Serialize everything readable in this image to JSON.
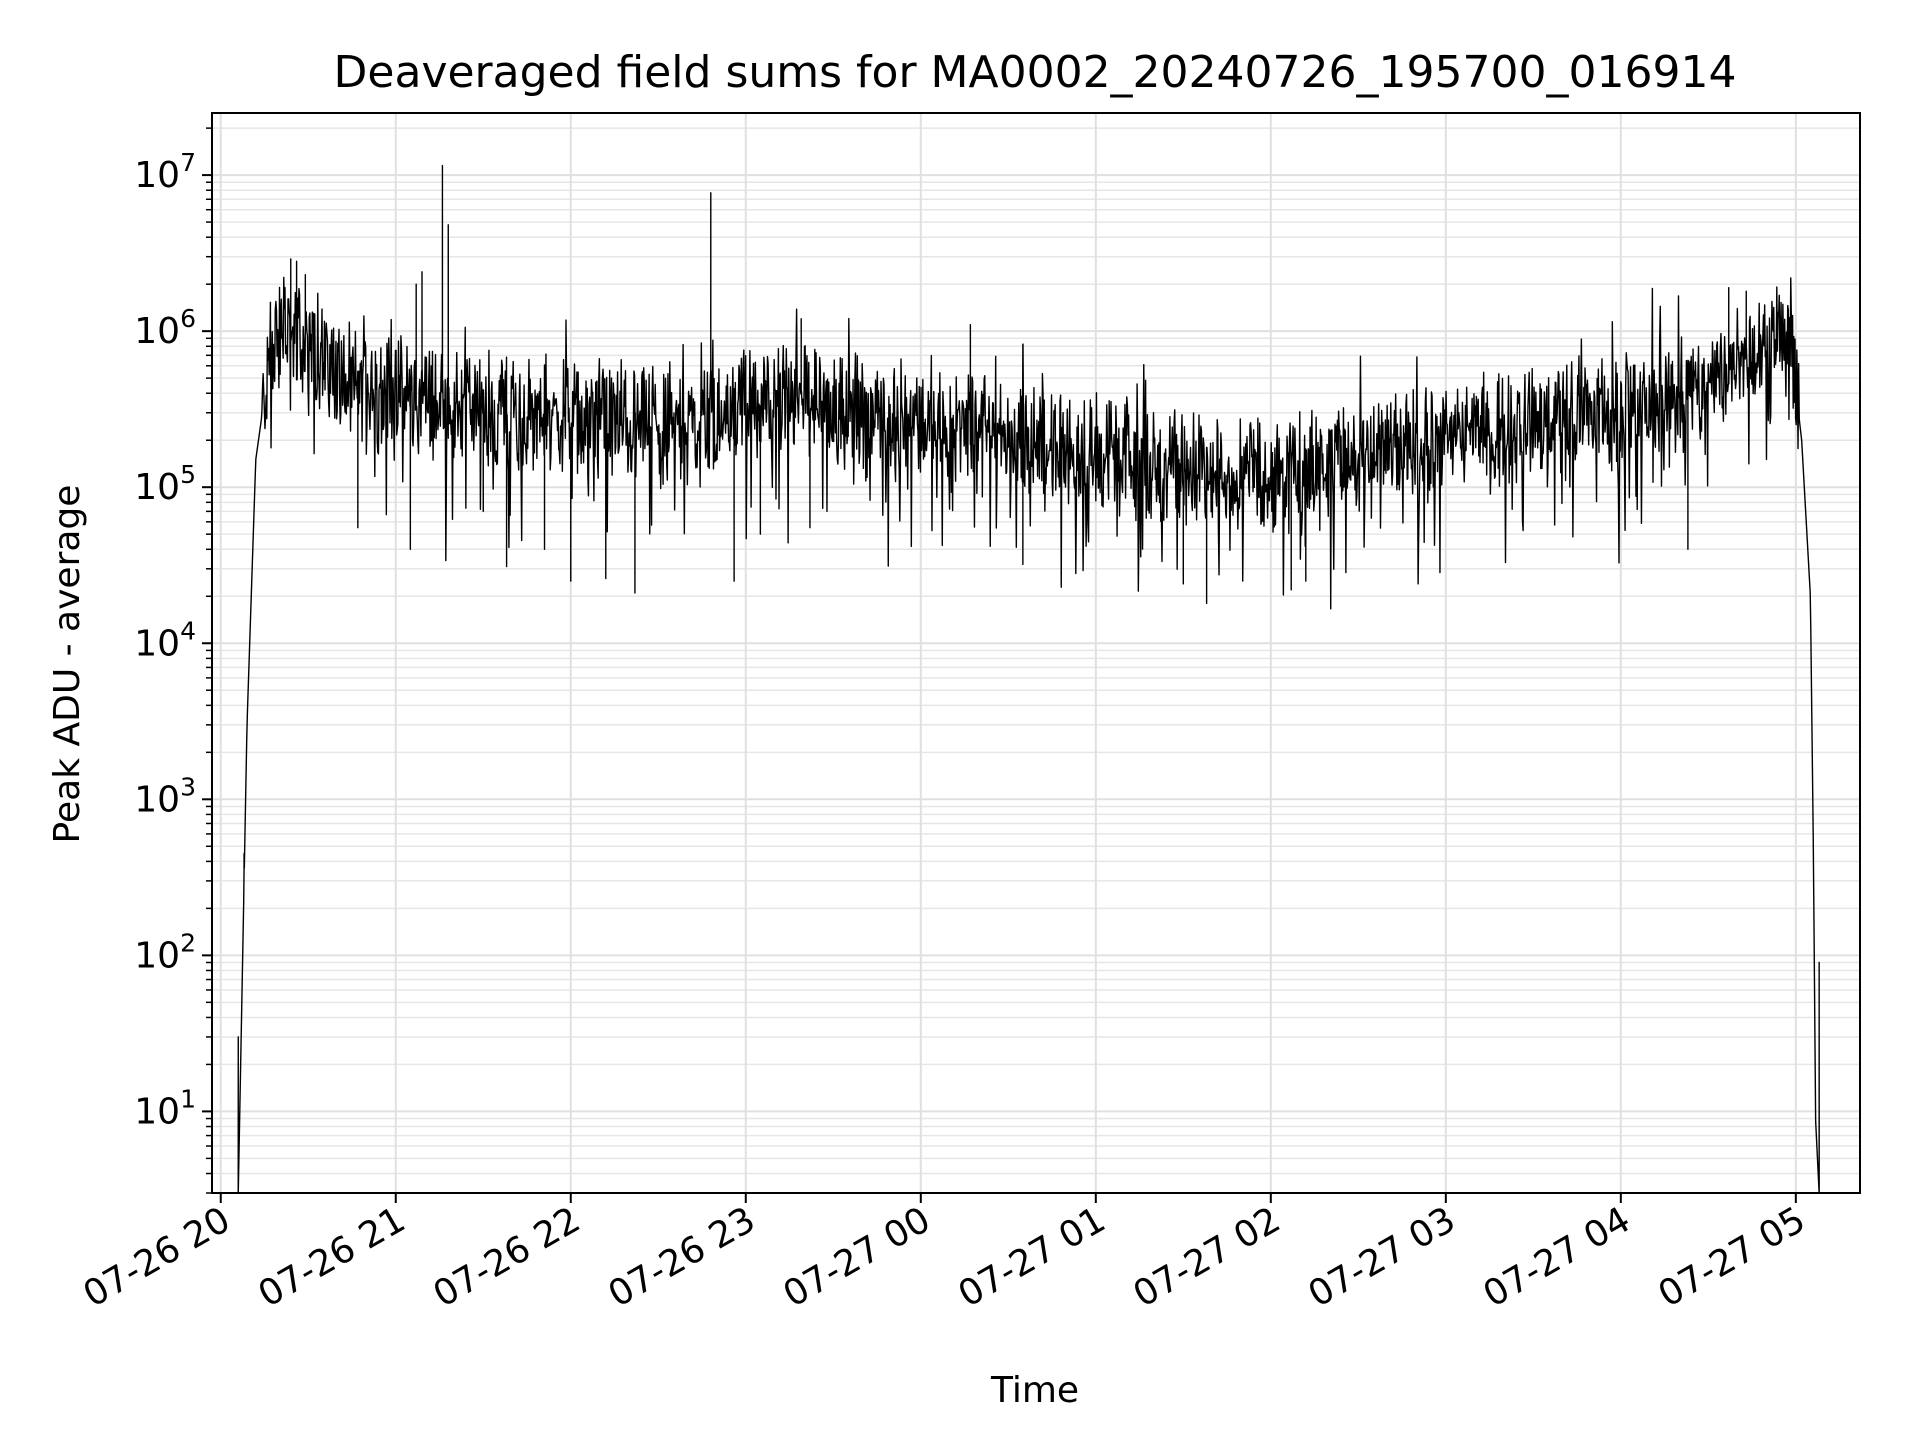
{
  "chart_data": {
    "type": "line",
    "title": "Deaveraged field sums for MA0002_20240726_195700_016914",
    "xlabel": "Time",
    "ylabel": "Peak ADU - average",
    "yscale": "log",
    "ylim": [
      3,
      25000000
    ],
    "xlim": [
      "2024-07-26 19:57",
      "2024-07-27 05:22"
    ],
    "grid": "on",
    "x_ticks": [
      {
        "value": "2024-07-26 20:00",
        "label": "07-26 20"
      },
      {
        "value": "2024-07-26 21:00",
        "label": "07-26 21"
      },
      {
        "value": "2024-07-26 22:00",
        "label": "07-26 22"
      },
      {
        "value": "2024-07-26 23:00",
        "label": "07-26 23"
      },
      {
        "value": "2024-07-27 00:00",
        "label": "07-27 00"
      },
      {
        "value": "2024-07-27 01:00",
        "label": "07-27 01"
      },
      {
        "value": "2024-07-27 02:00",
        "label": "07-27 02"
      },
      {
        "value": "2024-07-27 03:00",
        "label": "07-27 03"
      },
      {
        "value": "2024-07-27 04:00",
        "label": "07-27 04"
      },
      {
        "value": "2024-07-27 05:00",
        "label": "07-27 05"
      }
    ],
    "y_ticks": [
      {
        "value": 10,
        "base": "10",
        "exp": "1"
      },
      {
        "value": 100,
        "base": "10",
        "exp": "2"
      },
      {
        "value": 1000,
        "base": "10",
        "exp": "3"
      },
      {
        "value": 10000,
        "base": "10",
        "exp": "4"
      },
      {
        "value": 100000,
        "base": "10",
        "exp": "5"
      },
      {
        "value": 1000000,
        "base": "10",
        "exp": "6"
      },
      {
        "value": 10000000,
        "base": "10",
        "exp": "7"
      }
    ],
    "series": [
      {
        "color": "#000000",
        "envelope": [
          [
            "2024-07-26 20:06",
            3
          ],
          [
            "2024-07-26 20:09",
            3000
          ],
          [
            "2024-07-26 20:12",
            150000
          ],
          [
            "2024-07-26 20:17",
            700000
          ],
          [
            "2024-07-26 20:22",
            1100000
          ],
          [
            "2024-07-26 20:30",
            800000
          ],
          [
            "2024-07-26 20:45",
            450000
          ],
          [
            "2024-07-26 21:00",
            380000
          ],
          [
            "2024-07-26 21:30",
            320000
          ],
          [
            "2024-07-26 22:00",
            280000
          ],
          [
            "2024-07-26 22:30",
            260000
          ],
          [
            "2024-07-26 23:00",
            330000
          ],
          [
            "2024-07-26 23:20",
            380000
          ],
          [
            "2024-07-26 23:40",
            300000
          ],
          [
            "2024-07-27 00:00",
            250000
          ],
          [
            "2024-07-27 00:30",
            220000
          ],
          [
            "2024-07-27 01:00",
            160000
          ],
          [
            "2024-07-27 01:30",
            130000
          ],
          [
            "2024-07-27 02:00",
            120000
          ],
          [
            "2024-07-27 02:30",
            150000
          ],
          [
            "2024-07-27 03:00",
            200000
          ],
          [
            "2024-07-27 03:30",
            260000
          ],
          [
            "2024-07-27 04:00",
            300000
          ],
          [
            "2024-07-27 04:20",
            380000
          ],
          [
            "2024-07-27 04:40",
            600000
          ],
          [
            "2024-07-27 04:53",
            1050000
          ],
          [
            "2024-07-27 04:58",
            900000
          ],
          [
            "2024-07-27 05:02",
            200000
          ],
          [
            "2024-07-27 05:05",
            20000
          ],
          [
            "2024-07-27 05:06",
            500
          ],
          [
            "2024-07-27 05:07",
            3
          ]
        ],
        "spikes": [
          [
            "2024-07-26 20:06",
            30
          ],
          [
            "2024-07-26 20:08",
            450
          ],
          [
            "2024-07-26 20:24",
            2900000
          ],
          [
            "2024-07-26 20:26",
            2800000
          ],
          [
            "2024-07-26 20:29",
            2300000
          ],
          [
            "2024-07-26 21:07",
            2000000
          ],
          [
            "2024-07-26 21:09",
            2400000
          ],
          [
            "2024-07-26 21:16",
            11500000
          ],
          [
            "2024-07-26 21:18",
            4800000
          ],
          [
            "2024-07-26 22:48",
            7700000
          ],
          [
            "2024-07-26 23:19",
            1200000
          ],
          [
            "2024-07-27 00:17",
            1100000
          ],
          [
            "2024-07-27 04:37",
            1900000
          ],
          [
            "2024-07-27 04:43",
            1800000
          ],
          [
            "2024-07-27 05:08",
            90
          ]
        ],
        "dips": [
          [
            "2024-07-26 20:47",
            55000
          ],
          [
            "2024-07-26 21:05",
            40000
          ],
          [
            "2024-07-26 21:30",
            70000
          ],
          [
            "2024-07-26 21:38",
            31000
          ],
          [
            "2024-07-26 21:51",
            40000
          ],
          [
            "2024-07-26 22:00",
            25000
          ],
          [
            "2024-07-26 22:12",
            26000
          ],
          [
            "2024-07-26 22:22",
            21000
          ],
          [
            "2024-07-26 22:56",
            25000
          ],
          [
            "2024-07-26 23:05",
            50000
          ],
          [
            "2024-07-26 23:22",
            55000
          ],
          [
            "2024-07-27 00:35",
            32000
          ],
          [
            "2024-07-27 01:30",
            24000
          ],
          [
            "2024-07-27 01:38",
            18000
          ],
          [
            "2024-07-27 02:07",
            22000
          ],
          [
            "2024-07-27 02:12",
            25000
          ],
          [
            "2024-07-27 04:23",
            40000
          ]
        ]
      }
    ]
  }
}
